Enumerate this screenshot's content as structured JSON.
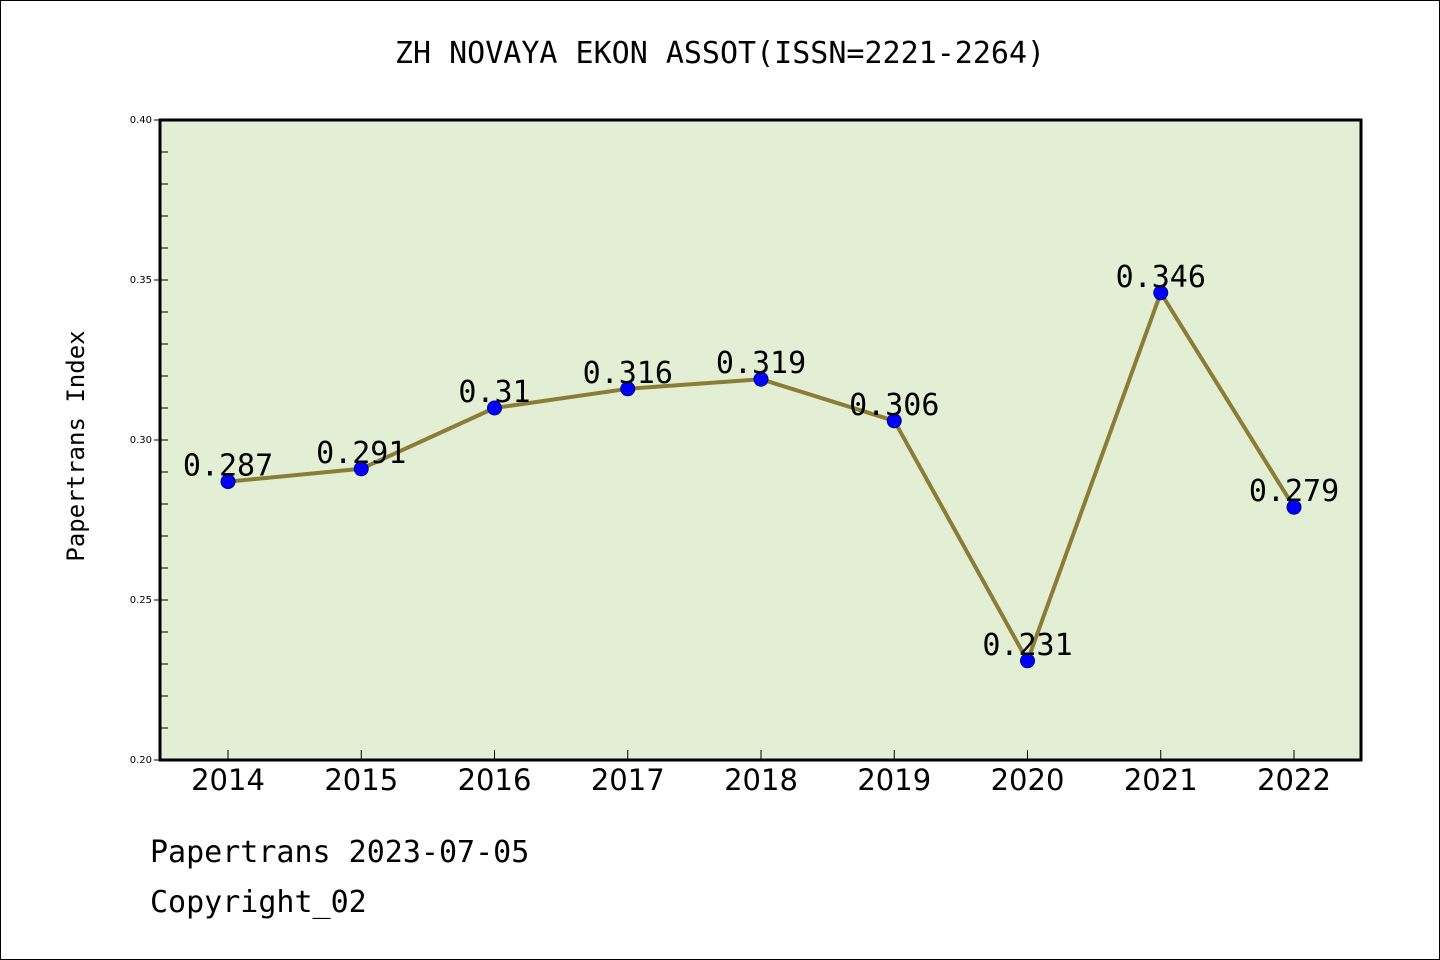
{
  "chart_data": {
    "type": "line",
    "title": "ZH NOVAYA EKON ASSOT(ISSN=2221-2264)",
    "xlabel": "",
    "ylabel": "Papertrans Index",
    "x": [
      "2014",
      "2015",
      "2016",
      "2017",
      "2018",
      "2019",
      "2020",
      "2021",
      "2022"
    ],
    "values": [
      0.287,
      0.291,
      0.31,
      0.316,
      0.319,
      0.306,
      0.231,
      0.346,
      0.279
    ],
    "data_labels": [
      "0.287",
      "0.291",
      "0.31",
      "0.316",
      "0.319",
      "0.306",
      "0.231",
      "0.346",
      "0.279"
    ],
    "ylim": [
      0.2,
      0.4
    ],
    "yticks": [
      "0.20",
      "0.25",
      "0.30",
      "0.35",
      "0.40"
    ],
    "grid": false,
    "colors": {
      "plot_background": "#e2efd4",
      "line": "#8b7d35",
      "marker": "#0000ff"
    }
  },
  "footer": {
    "date_line": "Papertrans 2023-07-05",
    "copyright": "Copyright_02"
  }
}
